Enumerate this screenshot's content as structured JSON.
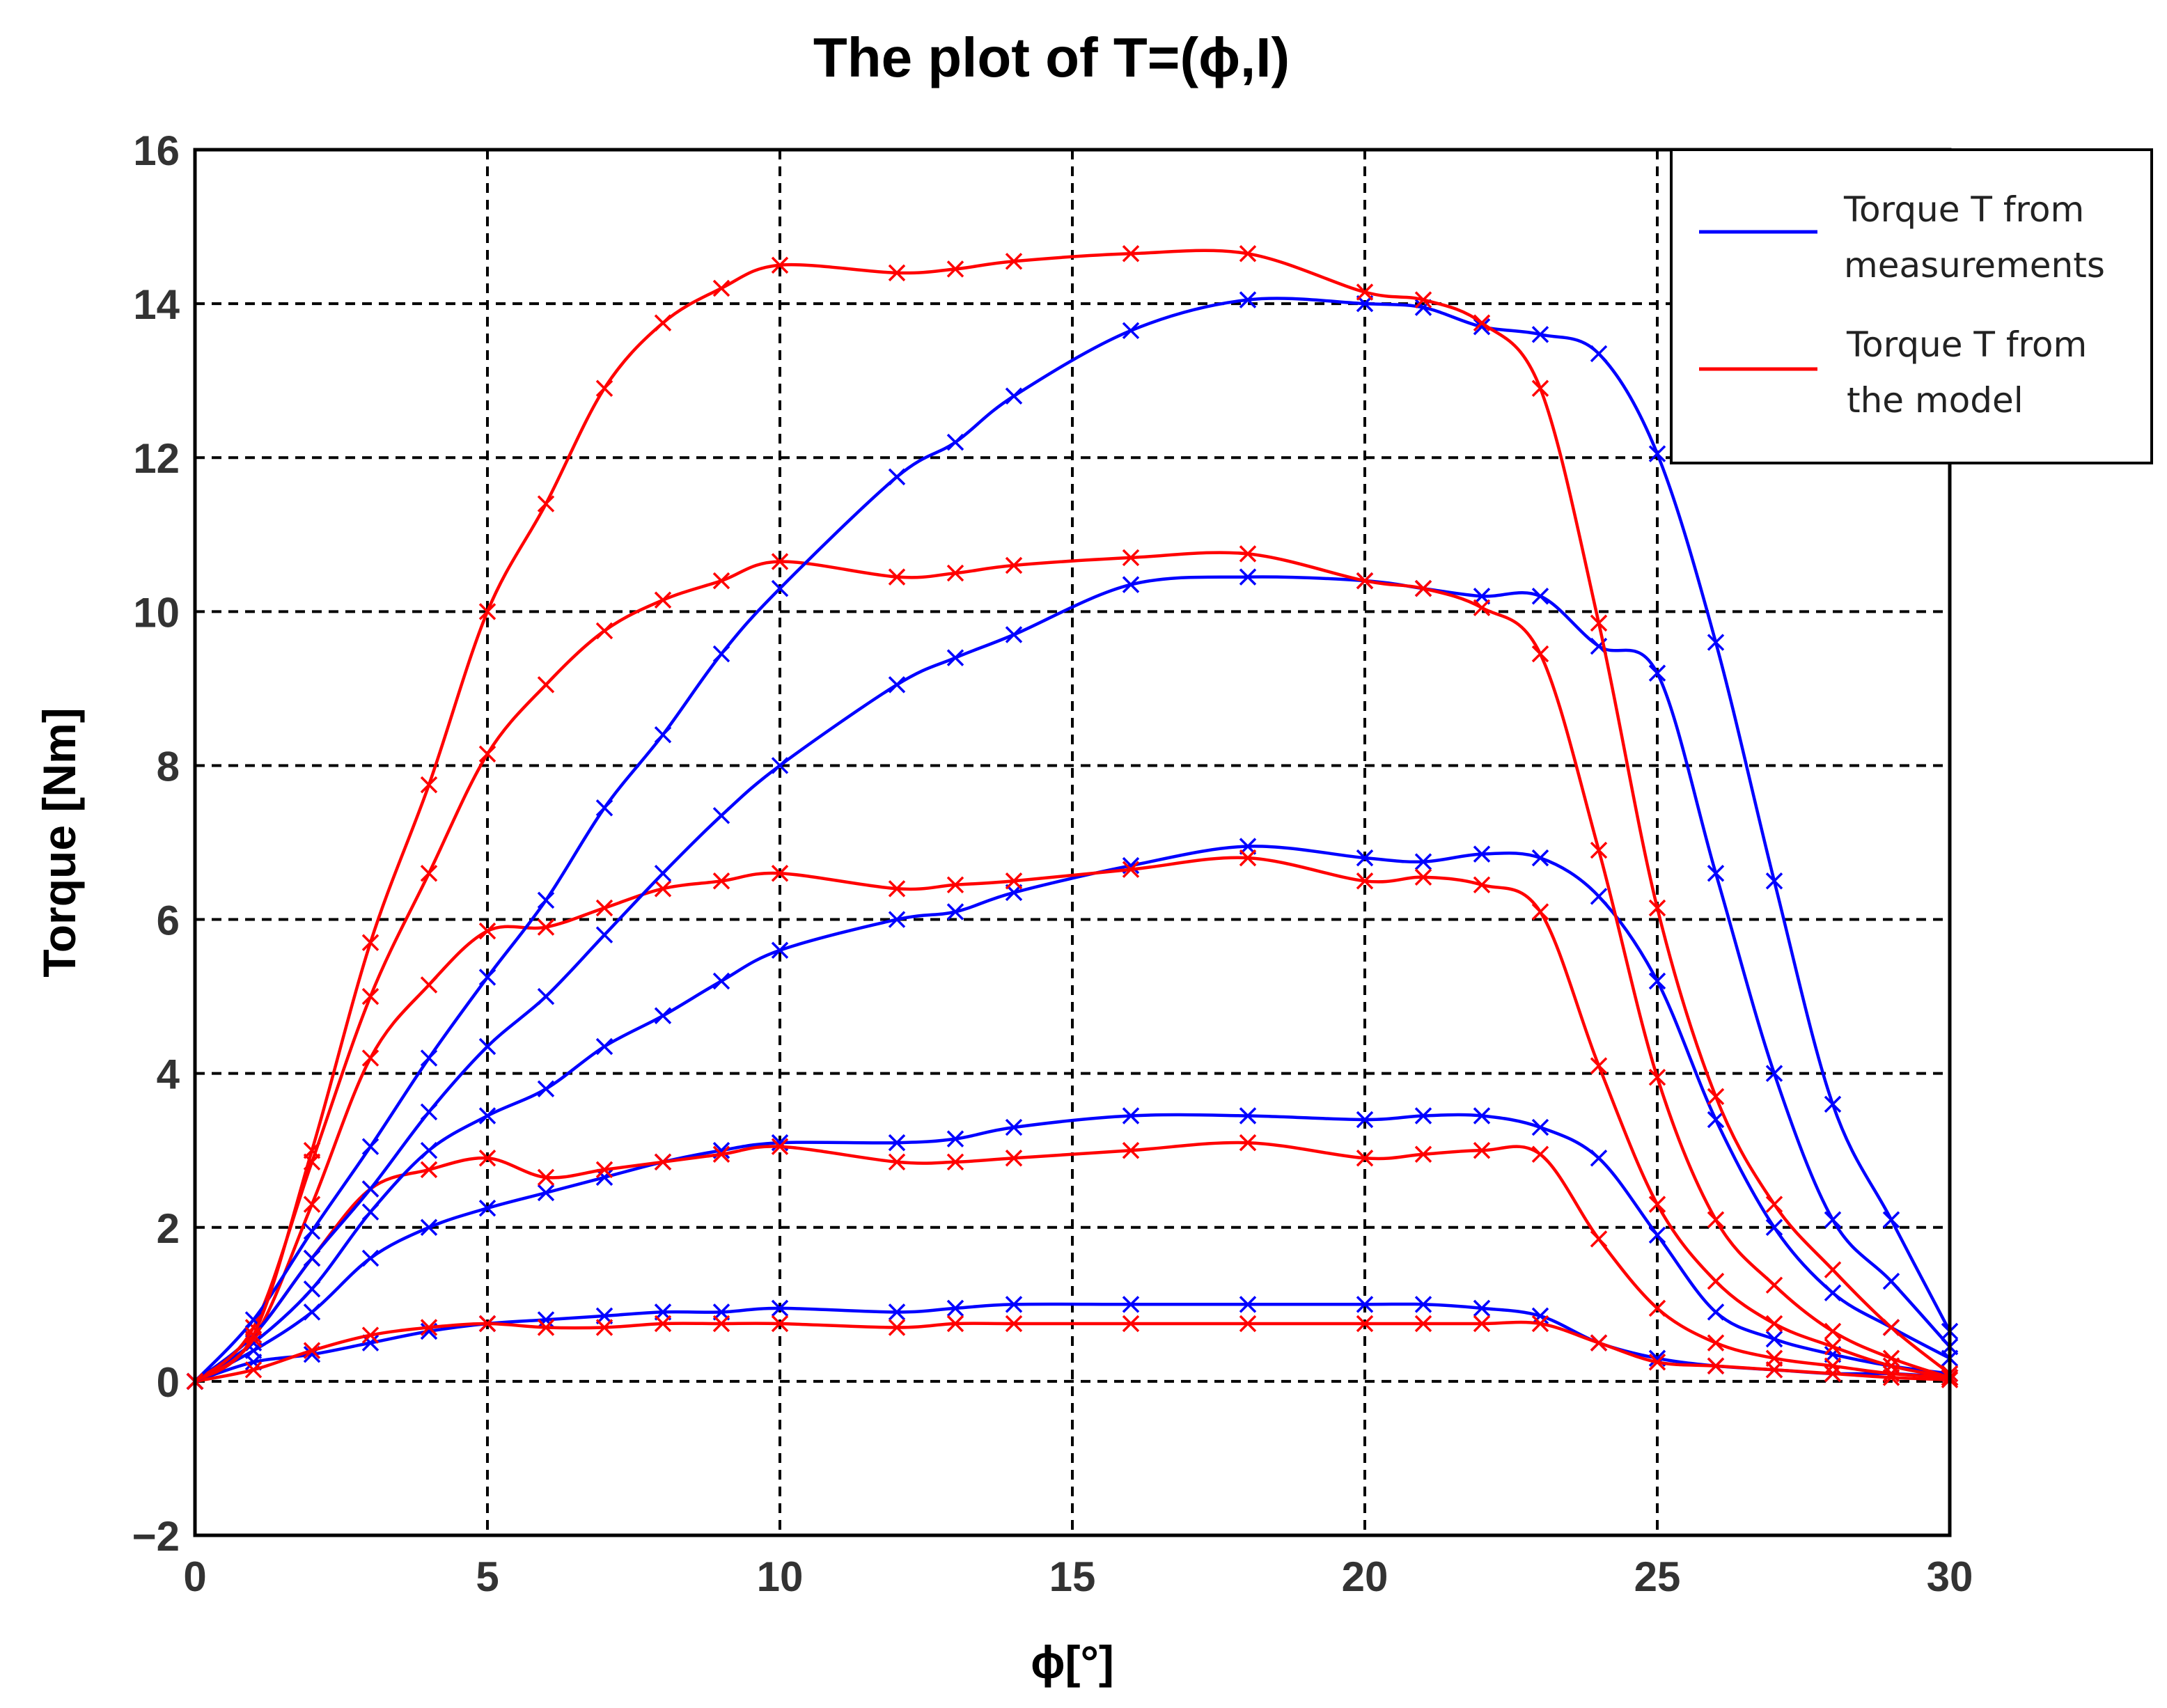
{
  "chart_data": {
    "type": "line",
    "title": "The plot of T=(ϕ,I)",
    "xlabel": "ϕ[°]",
    "ylabel": "Torque [Nm]",
    "xlim": [
      0,
      30
    ],
    "ylim": [
      -2,
      16
    ],
    "xticks": [
      0,
      5,
      10,
      15,
      20,
      25,
      30
    ],
    "yticks": [
      -2,
      0,
      2,
      4,
      6,
      8,
      10,
      12,
      14,
      16
    ],
    "grid": true,
    "legend_position": "top-right",
    "legend": [
      {
        "label_lines": [
          "Torque T from",
          "measurements"
        ],
        "color": "#0000ff"
      },
      {
        "label_lines": [
          "Torque T from",
          "the model"
        ],
        "color": "#ff0000"
      }
    ],
    "series": [
      {
        "name": "Torque T from measurements",
        "group": "measurements",
        "color": "#0000ff",
        "x": [
          0,
          1,
          2,
          3,
          4,
          5,
          6,
          7,
          8,
          9,
          10,
          12,
          13,
          14,
          16,
          18,
          20,
          21,
          22,
          23,
          24,
          25,
          26,
          27,
          28,
          29,
          30
        ],
        "y": [
          0,
          0.25,
          0.35,
          0.5,
          0.65,
          0.75,
          0.8,
          0.85,
          0.9,
          0.9,
          0.95,
          0.9,
          0.95,
          1.0,
          1.0,
          1.0,
          1.0,
          1.0,
          0.95,
          0.85,
          0.5,
          0.3,
          0.2,
          0.15,
          0.1,
          0.1,
          0.05
        ]
      },
      {
        "name": "Torque T from the model",
        "group": "model",
        "color": "#ff0000",
        "x": [
          0,
          1,
          2,
          3,
          4,
          5,
          6,
          7,
          8,
          9,
          10,
          12,
          13,
          14,
          16,
          18,
          20,
          21,
          22,
          23,
          24,
          25,
          26,
          27,
          28,
          29,
          30
        ],
        "y": [
          0,
          0.15,
          0.4,
          0.6,
          0.7,
          0.75,
          0.7,
          0.7,
          0.75,
          0.75,
          0.75,
          0.7,
          0.75,
          0.75,
          0.75,
          0.75,
          0.75,
          0.75,
          0.75,
          0.75,
          0.5,
          0.25,
          0.2,
          0.15,
          0.1,
          0.05,
          0.02
        ]
      },
      {
        "name": "Torque T from measurements",
        "group": "measurements",
        "color": "#0000ff",
        "x": [
          0,
          1,
          2,
          3,
          4,
          5,
          6,
          7,
          8,
          9,
          10,
          12,
          13,
          14,
          16,
          18,
          20,
          21,
          22,
          23,
          24,
          25,
          26,
          27,
          28,
          29,
          30
        ],
        "y": [
          0,
          0.4,
          0.9,
          1.6,
          2.0,
          2.25,
          2.45,
          2.65,
          2.85,
          3.0,
          3.1,
          3.1,
          3.15,
          3.3,
          3.45,
          3.45,
          3.4,
          3.45,
          3.45,
          3.3,
          2.9,
          1.9,
          0.9,
          0.55,
          0.35,
          0.2,
          0.1
        ]
      },
      {
        "name": "Torque T from the model",
        "group": "model",
        "color": "#ff0000",
        "x": [
          0,
          1,
          2,
          3,
          4,
          5,
          6,
          7,
          8,
          9,
          10,
          12,
          13,
          14,
          16,
          18,
          20,
          21,
          22,
          23,
          24,
          25,
          26,
          27,
          28,
          29,
          30
        ],
        "y": [
          0,
          0.6,
          1.6,
          2.5,
          2.75,
          2.9,
          2.65,
          2.75,
          2.85,
          2.95,
          3.05,
          2.85,
          2.85,
          2.9,
          3.0,
          3.1,
          2.9,
          2.95,
          3.0,
          2.95,
          1.85,
          0.95,
          0.5,
          0.3,
          0.2,
          0.1,
          0.05
        ]
      },
      {
        "name": "Torque T from measurements",
        "group": "measurements",
        "color": "#0000ff",
        "x": [
          0,
          1,
          2,
          3,
          4,
          5,
          6,
          7,
          8,
          9,
          10,
          12,
          13,
          14,
          16,
          18,
          20,
          21,
          22,
          23,
          24,
          25,
          26,
          27,
          28,
          29,
          30
        ],
        "y": [
          0,
          0.5,
          1.2,
          2.2,
          3.0,
          3.45,
          3.8,
          4.35,
          4.75,
          5.2,
          5.6,
          6.0,
          6.1,
          6.35,
          6.7,
          6.95,
          6.8,
          6.75,
          6.85,
          6.8,
          6.3,
          5.2,
          3.4,
          2.0,
          1.15,
          0.7,
          0.3
        ]
      },
      {
        "name": "Torque T from the model",
        "group": "model",
        "color": "#ff0000",
        "x": [
          0,
          1,
          2,
          3,
          4,
          5,
          6,
          7,
          8,
          9,
          10,
          12,
          13,
          14,
          16,
          18,
          20,
          21,
          22,
          23,
          24,
          25,
          26,
          27,
          28,
          29,
          30
        ],
        "y": [
          0,
          0.55,
          2.3,
          4.2,
          5.15,
          5.85,
          5.9,
          6.15,
          6.4,
          6.5,
          6.6,
          6.4,
          6.45,
          6.5,
          6.65,
          6.8,
          6.5,
          6.55,
          6.45,
          6.1,
          4.1,
          2.3,
          1.3,
          0.75,
          0.45,
          0.2,
          0.05
        ]
      },
      {
        "name": "Torque T from measurements",
        "group": "measurements",
        "color": "#0000ff",
        "x": [
          0,
          1,
          2,
          3,
          4,
          5,
          6,
          7,
          8,
          9,
          10,
          12,
          13,
          14,
          16,
          18,
          20,
          21,
          22,
          23,
          24,
          25,
          26,
          27,
          28,
          29,
          30
        ],
        "y": [
          0,
          0.6,
          1.6,
          2.5,
          3.5,
          4.35,
          5.0,
          5.8,
          6.6,
          7.35,
          8.0,
          9.05,
          9.4,
          9.7,
          10.35,
          10.45,
          10.4,
          10.3,
          10.2,
          10.2,
          9.55,
          9.2,
          6.6,
          4.0,
          2.1,
          1.3,
          0.45
        ]
      },
      {
        "name": "Torque T from the model",
        "group": "model",
        "color": "#ff0000",
        "x": [
          0,
          1,
          2,
          3,
          4,
          5,
          6,
          7,
          8,
          9,
          10,
          12,
          13,
          14,
          16,
          18,
          20,
          21,
          22,
          23,
          24,
          25,
          26,
          27,
          28,
          29,
          30
        ],
        "y": [
          0,
          0.7,
          2.85,
          5.0,
          6.6,
          8.15,
          9.05,
          9.75,
          10.15,
          10.4,
          10.65,
          10.45,
          10.5,
          10.6,
          10.7,
          10.75,
          10.4,
          10.3,
          10.05,
          9.45,
          6.9,
          3.95,
          2.1,
          1.25,
          0.65,
          0.3,
          0.05
        ]
      },
      {
        "name": "Torque T from measurements",
        "group": "measurements",
        "color": "#0000ff",
        "x": [
          0,
          1,
          2,
          3,
          4,
          5,
          6,
          7,
          8,
          9,
          10,
          12,
          13,
          14,
          16,
          18,
          20,
          21,
          22,
          23,
          24,
          25,
          26,
          27,
          28,
          29,
          30
        ],
        "y": [
          0,
          0.8,
          1.95,
          3.05,
          4.2,
          5.25,
          6.25,
          7.45,
          8.4,
          9.45,
          10.3,
          11.75,
          12.2,
          12.8,
          13.65,
          14.05,
          14.0,
          13.95,
          13.7,
          13.6,
          13.35,
          12.05,
          9.6,
          6.5,
          3.6,
          2.1,
          0.65
        ]
      },
      {
        "name": "Torque T from the model",
        "group": "model",
        "color": "#ff0000",
        "x": [
          0,
          1,
          2,
          3,
          4,
          5,
          6,
          7,
          8,
          9,
          10,
          12,
          13,
          14,
          16,
          18,
          20,
          21,
          22,
          23,
          24,
          25,
          26,
          27,
          28,
          29,
          30
        ],
        "y": [
          0,
          0.6,
          3.0,
          5.7,
          7.75,
          10.0,
          11.4,
          12.9,
          13.75,
          14.2,
          14.5,
          14.4,
          14.45,
          14.55,
          14.65,
          14.65,
          14.15,
          14.05,
          13.75,
          12.9,
          9.85,
          6.15,
          3.7,
          2.3,
          1.45,
          0.7,
          0.1
        ]
      }
    ]
  }
}
